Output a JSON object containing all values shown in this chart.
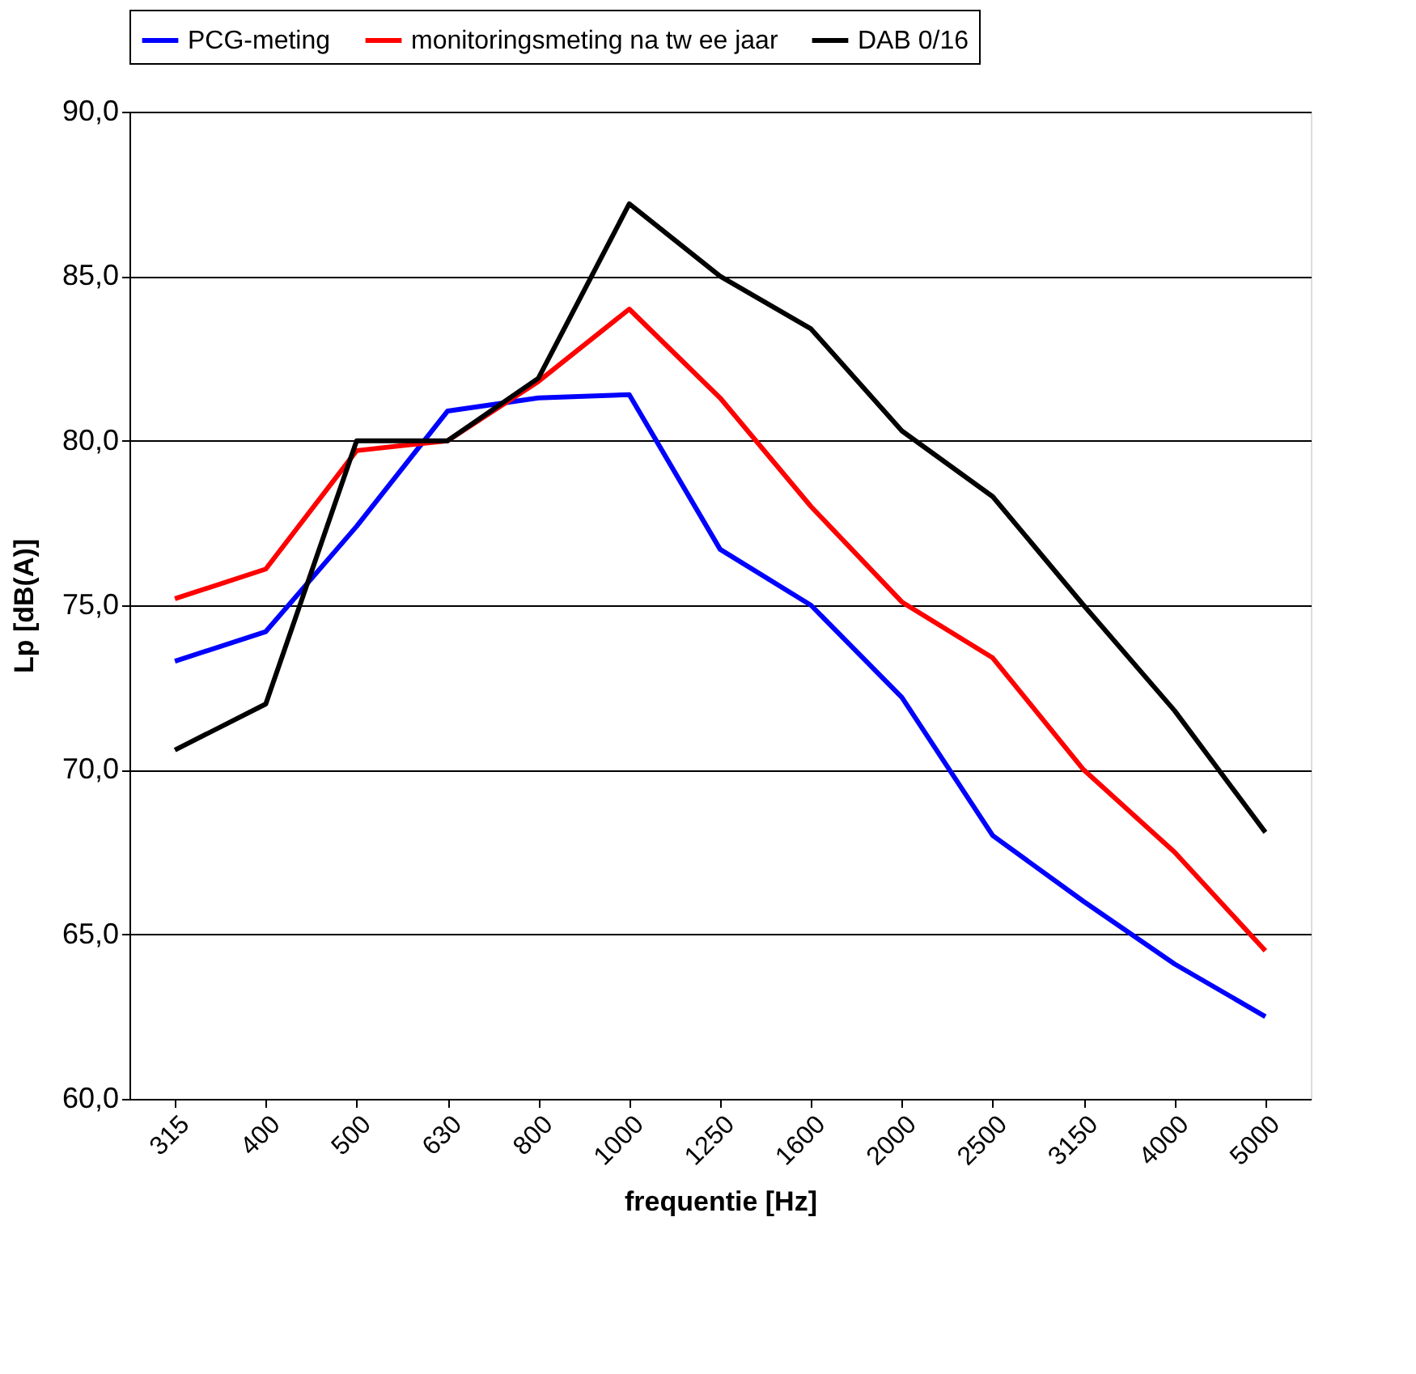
{
  "chart_data": {
    "type": "line",
    "xlabel": "frequentie [Hz]",
    "ylabel": "Lp [dB(A)]",
    "categories": [
      "315",
      "400",
      "500",
      "630",
      "800",
      "1000",
      "1250",
      "1600",
      "2000",
      "2500",
      "3150",
      "4000",
      "5000"
    ],
    "series": [
      {
        "name": "PCG-meting",
        "color": "#0000ff",
        "values": [
          73.3,
          74.2,
          77.4,
          80.9,
          81.3,
          81.4,
          76.7,
          75.0,
          72.2,
          68.0,
          66.0,
          64.1,
          62.5
        ]
      },
      {
        "name": "monitoringsmeting na tw ee jaar",
        "color": "#ff0000",
        "values": [
          75.2,
          76.1,
          79.7,
          80.0,
          81.8,
          84.0,
          81.3,
          78.0,
          75.1,
          73.4,
          70.0,
          67.5,
          64.5
        ]
      },
      {
        "name": "DAB 0/16",
        "color": "#000000",
        "values": [
          70.6,
          72.0,
          80.0,
          80.0,
          81.9,
          87.2,
          85.0,
          83.4,
          80.3,
          78.3,
          75.0,
          71.8,
          68.1
        ]
      }
    ],
    "ylim": [
      60,
      90
    ],
    "yticks": [
      {
        "value": 60,
        "label": "60,0"
      },
      {
        "value": 65,
        "label": "65,0"
      },
      {
        "value": 70,
        "label": "70,0"
      },
      {
        "value": 75,
        "label": "75,0"
      },
      {
        "value": 80,
        "label": "80,0"
      },
      {
        "value": 85,
        "label": "85,0"
      },
      {
        "value": 90,
        "label": "90,0"
      }
    ],
    "grid": "y",
    "legend": "top",
    "marker": "none",
    "line_style": "solid"
  }
}
